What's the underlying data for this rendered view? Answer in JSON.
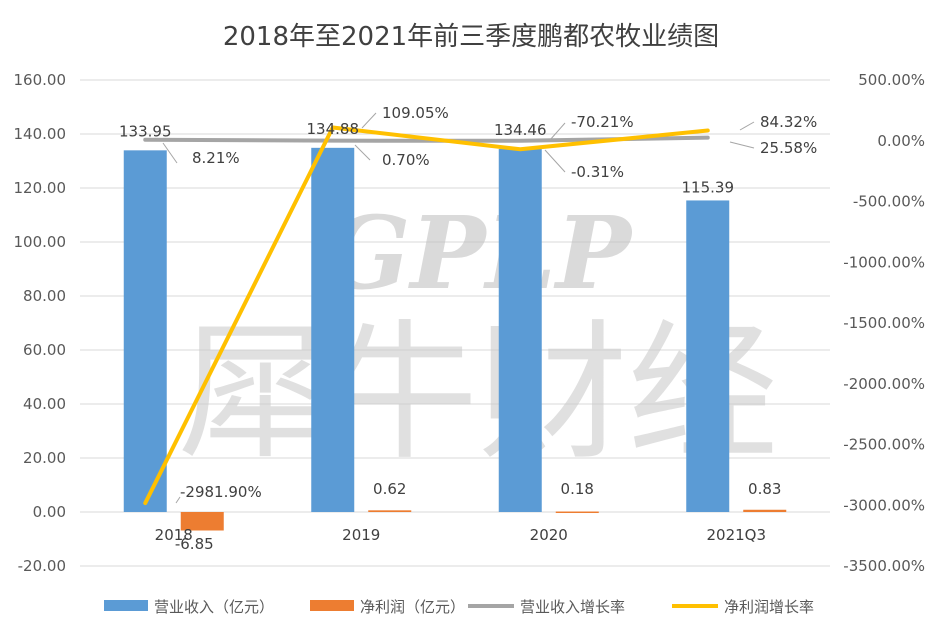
{
  "watermark": {
    "latin": "GPLP",
    "cjk": "犀牛财经"
  },
  "chart_data": {
    "type": "bar",
    "title": "2018年至2021年前三季度鹏都农牧业绩图",
    "categories": [
      "2018",
      "2019",
      "2020",
      "2021Q3"
    ],
    "left_axis": {
      "ylim": [
        -20,
        160
      ],
      "ticks": [
        "-20.00",
        "0.00",
        "20.00",
        "40.00",
        "60.00",
        "80.00",
        "100.00",
        "120.00",
        "140.00",
        "160.00"
      ]
    },
    "right_axis": {
      "ylim": [
        -3500,
        500
      ],
      "ticks": [
        "-3500.00%",
        "-3000.00%",
        "-2500.00%",
        "-2000.00%",
        "-1500.00%",
        "-1000.00%",
        "-500.00%",
        "0.00%",
        "500.00%"
      ]
    },
    "series": [
      {
        "name": "营业收入（亿元）",
        "kind": "bar",
        "axis": "left",
        "color": "#5b9bd5",
        "values": [
          133.95,
          134.88,
          134.46,
          115.39
        ],
        "labels": [
          "133.95",
          "134.88",
          "134.46",
          "115.39"
        ]
      },
      {
        "name": "净利润（亿元）",
        "kind": "bar",
        "axis": "left",
        "color": "#ed7d31",
        "values": [
          -6.85,
          0.62,
          0.18,
          0.83
        ],
        "labels": [
          "-6.85",
          "0.62",
          "0.18",
          "0.83"
        ]
      },
      {
        "name": "营业收入增长率",
        "kind": "line",
        "axis": "right",
        "color": "#a5a5a5",
        "values": [
          8.21,
          0.7,
          -0.31,
          25.58
        ],
        "labels": [
          "8.21%",
          "0.70%",
          "-0.31%",
          "25.58%"
        ]
      },
      {
        "name": "净利润增长率",
        "kind": "line",
        "axis": "right",
        "color": "#ffc000",
        "values": [
          -2981.9,
          109.05,
          -70.21,
          84.32
        ],
        "labels": [
          "-2981.90%",
          "109.05%",
          "-70.21%",
          "84.32%"
        ]
      }
    ],
    "grid": true,
    "legend": "bottom"
  }
}
